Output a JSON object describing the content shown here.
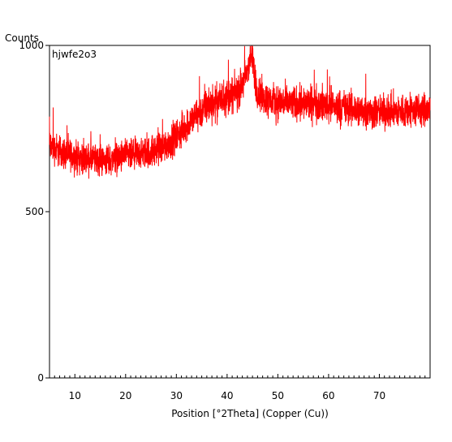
{
  "chart_data": {
    "type": "line",
    "ylabel": "Counts",
    "xlabel": "Position [°2Theta] (Copper (Cu))",
    "series_label": "hjwfe2o3",
    "xlim": [
      5,
      80
    ],
    "ylim": [
      0,
      1000
    ],
    "x_ticks": [
      10,
      20,
      30,
      40,
      50,
      60,
      70
    ],
    "y_ticks": [
      0,
      500,
      1000
    ],
    "x_tick_labels": [
      "10",
      "20",
      "30",
      "40",
      "50",
      "60",
      "70"
    ],
    "y_tick_labels": [
      "0",
      "500",
      "1000"
    ],
    "grid": false,
    "line_color": "#ff0000",
    "series": [
      {
        "x": [
          5,
          6,
          8,
          10,
          12,
          14,
          16,
          18,
          20,
          22,
          24,
          26,
          28,
          30,
          32,
          34,
          36,
          38,
          40,
          42,
          43,
          44,
          44.5,
          45,
          45.5,
          46,
          47,
          48,
          50,
          52,
          54,
          56,
          58,
          60,
          62,
          64,
          66,
          68,
          70,
          72,
          74,
          76,
          78,
          80
        ],
        "y": [
          700,
          690,
          675,
          665,
          660,
          655,
          655,
          660,
          665,
          670,
          675,
          685,
          700,
          725,
          760,
          790,
          815,
          830,
          845,
          860,
          880,
          920,
          965,
          960,
          900,
          860,
          845,
          835,
          830,
          825,
          825,
          825,
          825,
          820,
          815,
          810,
          805,
          800,
          800,
          800,
          800,
          805,
          805,
          805
        ]
      }
    ]
  }
}
